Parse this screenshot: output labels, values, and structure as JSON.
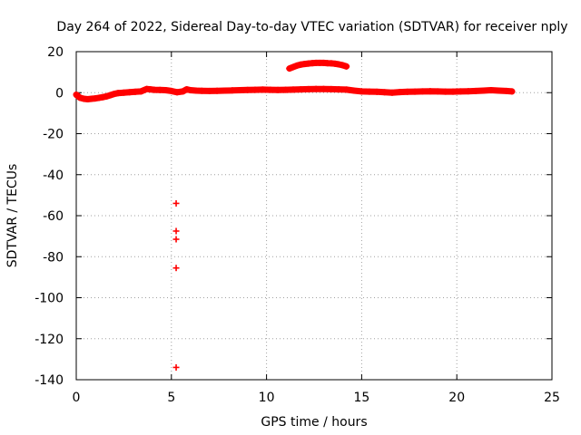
{
  "chart_data": {
    "type": "scatter",
    "title": "Day 264 of 2022, Sidereal Day-to-day VTEC variation (SDTVAR) for receiver nply",
    "xlabel": "GPS time / hours",
    "ylabel": "SDTVAR / TECUs",
    "xlim": [
      0,
      25
    ],
    "ylim": [
      -140,
      20
    ],
    "xticks": [
      "0",
      "5",
      "10",
      "15",
      "20",
      "25"
    ],
    "yticks": [
      "20",
      "0",
      "-20",
      "-40",
      "-60",
      "-80",
      "-100",
      "-120",
      "-140"
    ],
    "grid": true,
    "legend": "none",
    "marker": "plus",
    "color": "#ff0000",
    "series": [
      {
        "x": [
          0.0,
          0.2,
          0.4,
          0.6,
          0.8,
          1.0,
          1.2,
          1.4,
          1.6,
          1.8,
          2.0,
          2.2,
          2.5,
          2.8,
          3.1,
          3.4,
          3.7,
          3.9,
          4.1,
          4.4,
          4.7,
          5.0,
          5.3,
          5.6,
          5.8,
          6.0,
          6.3,
          6.6,
          7.0,
          7.4,
          7.8,
          8.2,
          8.6,
          9.0,
          9.4,
          9.8,
          10.2,
          10.6,
          11.0,
          11.4,
          11.8,
          12.2,
          12.6,
          13.0,
          13.4,
          13.8,
          14.2,
          14.6,
          15.0,
          15.4,
          15.8,
          16.2,
          16.6,
          17.0,
          17.4,
          17.8,
          18.2,
          18.6,
          19.0,
          19.4,
          19.8,
          20.2,
          20.6,
          21.0,
          21.4,
          21.8,
          22.2,
          22.6,
          22.9
        ],
        "y": [
          -1.0,
          -2.5,
          -3.0,
          -3.2,
          -3.0,
          -2.8,
          -2.5,
          -2.2,
          -1.8,
          -1.2,
          -0.6,
          -0.2,
          0.0,
          0.2,
          0.4,
          0.6,
          1.8,
          1.6,
          1.4,
          1.3,
          1.2,
          0.8,
          0.2,
          0.6,
          1.6,
          1.2,
          1.0,
          0.9,
          0.8,
          0.9,
          1.0,
          1.1,
          1.2,
          1.3,
          1.4,
          1.5,
          1.4,
          1.3,
          1.4,
          1.5,
          1.6,
          1.7,
          1.8,
          1.8,
          1.7,
          1.6,
          1.5,
          1.0,
          0.6,
          0.5,
          0.4,
          0.2,
          0.0,
          0.3,
          0.4,
          0.5,
          0.6,
          0.7,
          0.6,
          0.5,
          0.5,
          0.6,
          0.7,
          0.8,
          1.0,
          1.2,
          1.0,
          0.8,
          0.6
        ]
      },
      {
        "x": [
          11.2,
          11.4,
          11.6,
          11.8,
          12.0,
          12.2,
          12.4,
          12.6,
          12.8,
          13.0,
          13.2,
          13.4,
          13.6,
          13.8,
          14.0,
          14.2
        ],
        "y": [
          11.8,
          12.5,
          13.2,
          13.7,
          14.0,
          14.2,
          14.4,
          14.5,
          14.5,
          14.5,
          14.4,
          14.3,
          14.1,
          13.8,
          13.4,
          12.8
        ]
      },
      {
        "x": [
          5.25,
          5.25,
          5.25,
          5.25,
          5.25
        ],
        "y": [
          -54.0,
          -67.5,
          -71.5,
          -85.5,
          -134.0
        ]
      }
    ]
  }
}
